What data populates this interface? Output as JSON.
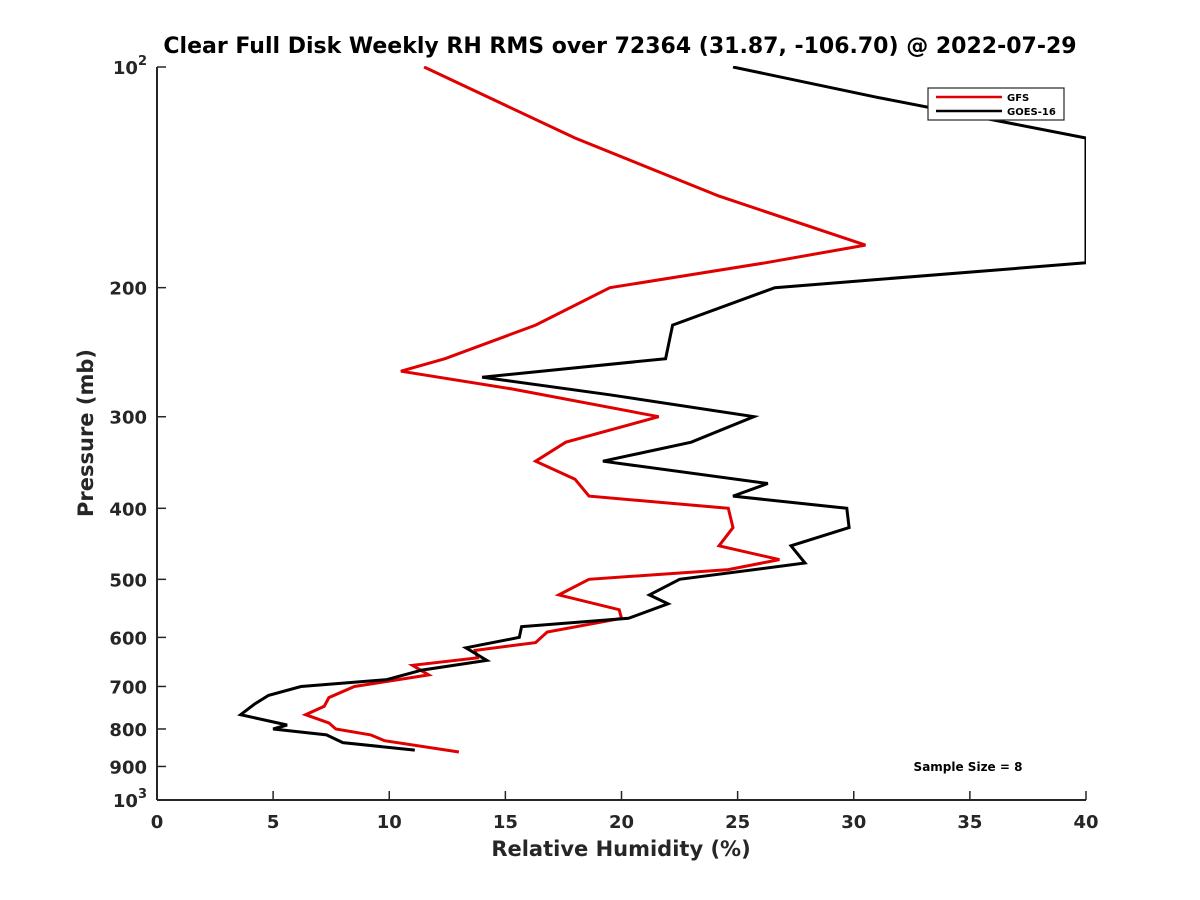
{
  "chart_data": {
    "type": "line",
    "title": "Clear Full Disk Weekly RH RMS over 72364 (31.87, -106.70) @ 2022-07-29",
    "xlabel": "Relative Humidity (%)",
    "ylabel": "Pressure (mb)",
    "xlim": [
      0,
      40
    ],
    "ylim": [
      100,
      1000
    ],
    "y_scale": "log",
    "y_reversed": true,
    "grid": false,
    "legend_position": "top-right",
    "x_ticks": [
      0,
      5,
      10,
      15,
      20,
      25,
      30,
      35,
      40
    ],
    "y_ticks": [
      {
        "value": 100,
        "base": "10",
        "exp": "2"
      },
      {
        "value": 200,
        "label": "200"
      },
      {
        "value": 300,
        "label": "300"
      },
      {
        "value": 400,
        "label": "400"
      },
      {
        "value": 500,
        "label": "500"
      },
      {
        "value": 600,
        "label": "600"
      },
      {
        "value": 700,
        "label": "700"
      },
      {
        "value": 800,
        "label": "800"
      },
      {
        "value": 900,
        "label": "900"
      },
      {
        "value": 1000,
        "base": "10",
        "exp": "3"
      }
    ],
    "annotation": "Sample Size = 8",
    "series": [
      {
        "name": "GFS",
        "color": "#e00000",
        "points": [
          [
            11.5,
            100
          ],
          [
            18.0,
            125
          ],
          [
            24.2,
            150
          ],
          [
            30.5,
            175
          ],
          [
            26.2,
            185
          ],
          [
            19.5,
            200
          ],
          [
            16.3,
            225
          ],
          [
            12.4,
            250
          ],
          [
            10.5,
            260
          ],
          [
            15.3,
            275
          ],
          [
            21.6,
            300
          ],
          [
            17.6,
            325
          ],
          [
            16.3,
            345
          ],
          [
            18.0,
            365
          ],
          [
            18.6,
            385
          ],
          [
            24.6,
            400
          ],
          [
            24.8,
            425
          ],
          [
            24.2,
            450
          ],
          [
            26.8,
            470
          ],
          [
            24.6,
            485
          ],
          [
            18.6,
            500
          ],
          [
            17.3,
            525
          ],
          [
            19.9,
            550
          ],
          [
            20.0,
            565
          ],
          [
            16.8,
            590
          ],
          [
            16.3,
            610
          ],
          [
            13.7,
            625
          ],
          [
            13.8,
            640
          ],
          [
            11.0,
            655
          ],
          [
            11.7,
            675
          ],
          [
            8.5,
            700
          ],
          [
            7.4,
            725
          ],
          [
            7.2,
            745
          ],
          [
            6.4,
            765
          ],
          [
            7.4,
            785
          ],
          [
            7.7,
            800
          ],
          [
            9.2,
            815
          ],
          [
            9.8,
            830
          ],
          [
            13.0,
            860
          ]
        ]
      },
      {
        "name": "GOES-16",
        "color": "#000000",
        "points": [
          [
            24.8,
            100
          ],
          [
            31.0,
            110
          ],
          [
            40.0,
            125
          ],
          [
            40.0,
            185
          ],
          [
            26.6,
            200
          ],
          [
            22.2,
            225
          ],
          [
            21.9,
            250
          ],
          [
            14.0,
            265
          ],
          [
            19.5,
            280
          ],
          [
            25.7,
            300
          ],
          [
            23.0,
            325
          ],
          [
            19.2,
            345
          ],
          [
            26.3,
            370
          ],
          [
            24.8,
            385
          ],
          [
            29.7,
            400
          ],
          [
            29.8,
            425
          ],
          [
            27.3,
            450
          ],
          [
            27.9,
            475
          ],
          [
            22.5,
            500
          ],
          [
            21.2,
            525
          ],
          [
            22.0,
            540
          ],
          [
            20.3,
            565
          ],
          [
            15.7,
            580
          ],
          [
            15.6,
            600
          ],
          [
            13.3,
            620
          ],
          [
            14.2,
            645
          ],
          [
            11.4,
            665
          ],
          [
            9.9,
            685
          ],
          [
            6.2,
            700
          ],
          [
            4.8,
            720
          ],
          [
            4.2,
            740
          ],
          [
            3.6,
            765
          ],
          [
            5.6,
            790
          ],
          [
            5.0,
            800
          ],
          [
            7.3,
            815
          ],
          [
            8.0,
            835
          ],
          [
            11.1,
            855
          ]
        ]
      }
    ]
  }
}
